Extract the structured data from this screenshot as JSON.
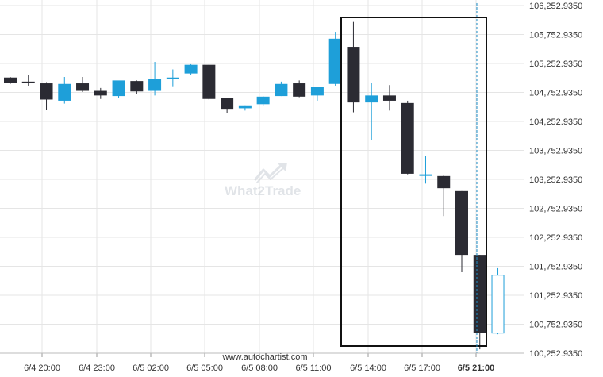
{
  "chart_data": {
    "type": "candlestick",
    "y_axis_labels": [
      "106,252.9350",
      "105,752.9350",
      "105,252.9350",
      "104,752.9350",
      "104,252.9350",
      "103,752.9350",
      "103,252.9350",
      "102,752.9350",
      "102,252.9350",
      "101,752.9350",
      "101,252.9350",
      "100,752.9350",
      "100,252.9350"
    ],
    "ylim": [
      100252.935,
      106252.935
    ],
    "x_axis_labels": [
      "6/4 20:00",
      "6/4 23:00",
      "6/5 02:00",
      "6/5 05:00",
      "6/5 08:00",
      "6/5 11:00",
      "6/5 14:00",
      "6/5 17:00",
      "6/5 21:00"
    ],
    "x_axis_emphasized": "6/5 21:00",
    "candles": [
      {
        "o": 105010,
        "h": 105020,
        "l": 104900,
        "c": 104920
      },
      {
        "o": 104940,
        "h": 105060,
        "l": 104870,
        "c": 104930
      },
      {
        "o": 104910,
        "h": 104930,
        "l": 104450,
        "c": 104630
      },
      {
        "o": 104610,
        "h": 105020,
        "l": 104560,
        "c": 104900
      },
      {
        "o": 104910,
        "h": 105020,
        "l": 104760,
        "c": 104780
      },
      {
        "o": 104780,
        "h": 104830,
        "l": 104640,
        "c": 104700
      },
      {
        "o": 104690,
        "h": 104950,
        "l": 104650,
        "c": 104960
      },
      {
        "o": 104950,
        "h": 104960,
        "l": 104720,
        "c": 104770
      },
      {
        "o": 104780,
        "h": 105280,
        "l": 104700,
        "c": 104980
      },
      {
        "o": 104990,
        "h": 105150,
        "l": 104860,
        "c": 105010
      },
      {
        "o": 105080,
        "h": 105240,
        "l": 105060,
        "c": 105230
      },
      {
        "o": 105230,
        "h": 105230,
        "l": 104630,
        "c": 104640
      },
      {
        "o": 104660,
        "h": 104660,
        "l": 104400,
        "c": 104470
      },
      {
        "o": 104480,
        "h": 104530,
        "l": 104440,
        "c": 104530
      },
      {
        "o": 104550,
        "h": 104690,
        "l": 104520,
        "c": 104680
      },
      {
        "o": 104690,
        "h": 104940,
        "l": 104690,
        "c": 104900
      },
      {
        "o": 104910,
        "h": 104960,
        "l": 104670,
        "c": 104680
      },
      {
        "o": 104700,
        "h": 104850,
        "l": 104610,
        "c": 104850
      },
      {
        "o": 104900,
        "h": 105800,
        "l": 104870,
        "c": 105680
      },
      {
        "o": 105540,
        "h": 105970,
        "l": 104410,
        "c": 104580
      },
      {
        "o": 104580,
        "h": 104920,
        "l": 103930,
        "c": 104700
      },
      {
        "o": 104700,
        "h": 104880,
        "l": 104440,
        "c": 104610
      },
      {
        "o": 104570,
        "h": 104610,
        "l": 103340,
        "c": 103350
      },
      {
        "o": 103340,
        "h": 103660,
        "l": 103180,
        "c": 103340
      },
      {
        "o": 103310,
        "h": 103320,
        "l": 102620,
        "c": 103100
      },
      {
        "o": 103050,
        "h": 103050,
        "l": 101650,
        "c": 101950
      },
      {
        "o": 101950,
        "h": 101950,
        "l": 100320,
        "c": 100600
      },
      {
        "o": 100600,
        "h": 101720,
        "l": 100580,
        "c": 101600
      }
    ],
    "colors": {
      "bullish": "#1e9fd9",
      "bearish": "#2b2b33",
      "last_candle_outline": "#1e9fd9",
      "grid": "#e5e5e5",
      "pattern_box": "#111111",
      "vertical_marker": "#1e8fc9"
    },
    "grid": true,
    "annotations": [
      "rectangle highlighting pattern from 6/5 12:00 to 6/5 21:00",
      "dashed vertical line at 6/5 21:00"
    ]
  },
  "watermark": {
    "text": "What2Trade",
    "icon": "chart-arrow-icon"
  },
  "source": "www.autochartist.com"
}
